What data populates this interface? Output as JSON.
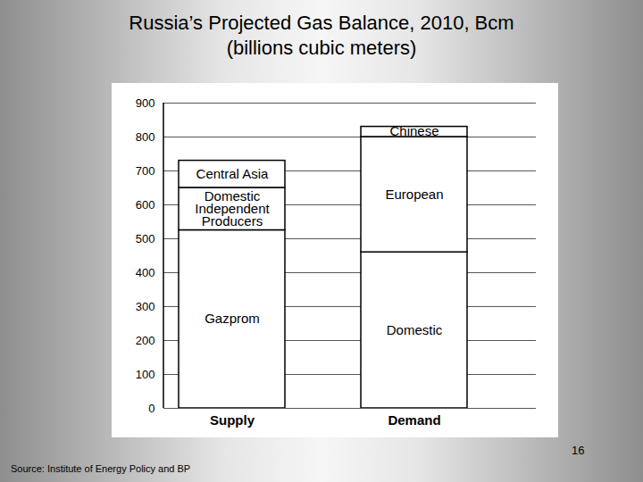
{
  "chart_data": {
    "type": "bar",
    "stacked": true,
    "title": "Russia’s Projected Gas Balance, 2010, Bcm",
    "subtitle": "(billions cubic meters)",
    "source": "Source: Institute of Energy Policy and BP",
    "page_number": "16",
    "categories": [
      "Supply",
      "Demand"
    ],
    "series": [
      {
        "name": "Gazprom",
        "values": [
          525,
          null
        ]
      },
      {
        "name": "Domestic Independent Producers",
        "values": [
          125,
          null
        ]
      },
      {
        "name": "Central Asia",
        "values": [
          80,
          null
        ]
      },
      {
        "name": "Domestic",
        "values": [
          null,
          460
        ]
      },
      {
        "name": "European",
        "values": [
          null,
          340
        ]
      },
      {
        "name": "Chinese",
        "values": [
          null,
          30
        ]
      }
    ],
    "color": "#ffffff",
    "ylim": [
      0,
      900
    ],
    "yticks": [
      0,
      100,
      200,
      300,
      400,
      500,
      600,
      700,
      800,
      900
    ],
    "grid": true
  }
}
